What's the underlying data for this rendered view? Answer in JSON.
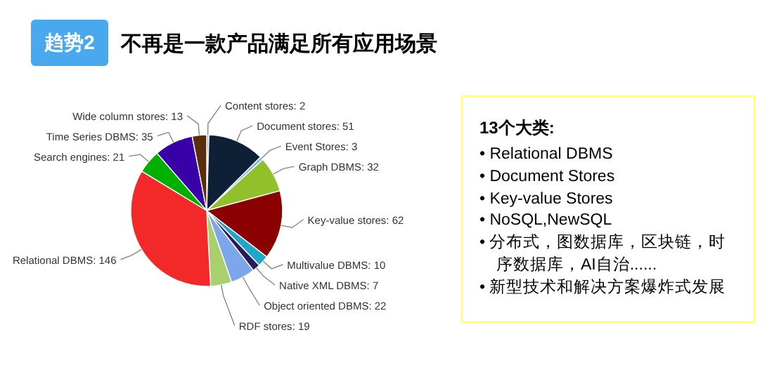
{
  "chart_data": [
    {
      "type": "pie",
      "title": "不再是一款产品满足所有应用场景",
      "annotations": [
        "趋势2"
      ],
      "categories": [
        "Content stores",
        "Document stores",
        "Event Stores",
        "Graph DBMS",
        "Key-value stores",
        "Multivalue DBMS",
        "Native XML DBMS",
        "Object oriented DBMS",
        "RDF stores",
        "Relational DBMS",
        "Search engines",
        "Time Series DBMS",
        "Wide column stores"
      ],
      "values": [
        2,
        51,
        3,
        32,
        62,
        10,
        7,
        22,
        19,
        146,
        21,
        35,
        13
      ],
      "colors": [
        "#7cb5ec",
        "#0d2035",
        "#7cb5ec",
        "#90c12a",
        "#8b0000",
        "#1fa6c8",
        "#2b1a5c",
        "#7ea6ea",
        "#a9cf6e",
        "#f22829",
        "#00b000",
        "#3a00a8",
        "#5a2e0c"
      ],
      "value_labels": [
        ": 2",
        ": 51",
        ": 3",
        ": 32",
        ": 62",
        ": 10",
        ": 7",
        ": 22",
        ": 19",
        ": 146",
        ": 21",
        ": 35",
        ": 13"
      ]
    },
    {
      "type": "other",
      "title": "13个大类:",
      "annotations": [
        "• Relational DBMS",
        "• Document Stores",
        "• Key-value Stores",
        "• NoSQL,NewSQL",
        "• 分布式，图数据库，区块链，时序数据库，AI自治......",
        "• 新型技术和解决方案爆炸式发展"
      ]
    }
  ]
}
